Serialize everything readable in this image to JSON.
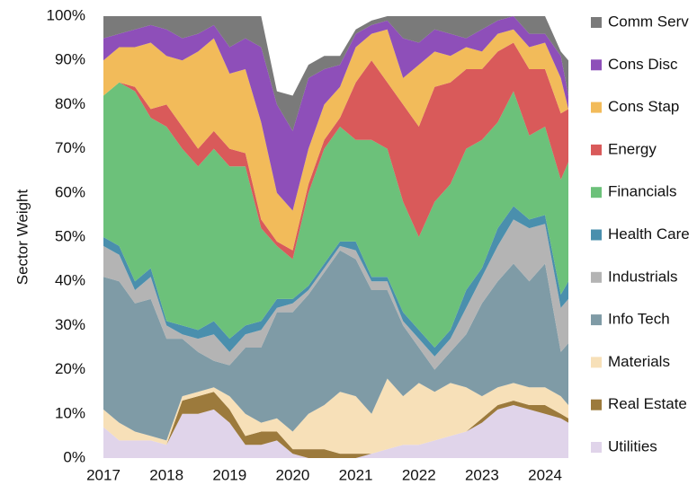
{
  "chart_data": {
    "type": "stacked_area",
    "y_label": "Sector Weight",
    "x": [
      2017,
      2017.25,
      2017.5,
      2017.75,
      2018,
      2018.25,
      2018.5,
      2018.75,
      2019,
      2019.25,
      2019.5,
      2019.75,
      2020,
      2020.25,
      2020.5,
      2020.75,
      2021,
      2021.25,
      2021.5,
      2021.75,
      2022,
      2022.25,
      2022.5,
      2022.75,
      2023,
      2023.25,
      2023.5,
      2023.75,
      2024,
      2024.25,
      2024.37
    ],
    "xlim": [
      2017,
      2024.37
    ],
    "xticks": [
      2017,
      2018,
      2019,
      2020,
      2021,
      2022,
      2023,
      2024
    ],
    "ylim": [
      0,
      100
    ],
    "yticks": [
      {
        "value": 0,
        "label": "0%"
      },
      {
        "value": 10,
        "label": "10%"
      },
      {
        "value": 20,
        "label": "20%"
      },
      {
        "value": 30,
        "label": "30%"
      },
      {
        "value": 40,
        "label": "40%"
      },
      {
        "value": 50,
        "label": "50%"
      },
      {
        "value": 60,
        "label": "60%"
      },
      {
        "value": 70,
        "label": "70%"
      },
      {
        "value": 80,
        "label": "80%"
      },
      {
        "value": 90,
        "label": "90%"
      },
      {
        "value": 100,
        "label": "100%"
      }
    ],
    "grid": false,
    "legend": "right",
    "series": [
      {
        "name": "Utilities",
        "color": "#e0d4ea",
        "values": [
          7,
          4,
          4,
          4,
          3,
          10,
          10,
          11,
          8,
          3,
          3,
          4,
          1,
          0,
          0,
          0,
          0,
          1,
          2,
          3,
          3,
          4,
          5,
          6,
          8,
          11,
          12,
          11,
          10,
          9,
          8
        ]
      },
      {
        "name": "Real Estate",
        "color": "#9c7a3c",
        "values": [
          0,
          0,
          0,
          0,
          0,
          3,
          4,
          4,
          3,
          2,
          3,
          2,
          1,
          2,
          2,
          1,
          1,
          0,
          0,
          0,
          0,
          0,
          0,
          0,
          1,
          1,
          1,
          1,
          2,
          1,
          1
        ]
      },
      {
        "name": "Materials",
        "color": "#f7e0b8",
        "values": [
          4,
          4,
          2,
          1,
          1,
          1,
          1,
          1,
          3,
          5,
          2,
          3,
          4,
          8,
          10,
          14,
          13,
          9,
          16,
          11,
          14,
          11,
          12,
          10,
          5,
          4,
          4,
          4,
          4,
          4,
          3
        ]
      },
      {
        "name": "Info Tech",
        "color": "#7f9ba6",
        "values": [
          30,
          32,
          29,
          31,
          23,
          13,
          9,
          6,
          7,
          15,
          17,
          24,
          27,
          27,
          30,
          32,
          31,
          28,
          20,
          16,
          8,
          5,
          7,
          12,
          21,
          24,
          27,
          24,
          28,
          10,
          14
        ]
      },
      {
        "name": "Industrials",
        "color": "#b4b4b4",
        "values": [
          7,
          6,
          3,
          5,
          3,
          1,
          3,
          6,
          3,
          3,
          4,
          1,
          2,
          1,
          1,
          1,
          2,
          2,
          2,
          1,
          2,
          3,
          3,
          6,
          6,
          8,
          10,
          12,
          9,
          10,
          10
        ]
      },
      {
        "name": "Health Care",
        "color": "#4a8fad",
        "values": [
          2,
          2,
          2,
          2,
          1,
          2,
          2,
          3,
          3,
          2,
          2,
          2,
          1,
          1,
          1,
          1,
          2,
          1,
          1,
          2,
          2,
          2,
          2,
          4,
          2,
          4,
          3,
          2,
          2,
          3,
          4
        ]
      },
      {
        "name": "Financials",
        "color": "#6cc17a",
        "values": [
          32,
          37,
          43,
          34,
          44,
          40,
          37,
          39,
          39,
          36,
          21,
          12,
          9,
          21,
          26,
          26,
          23,
          31,
          29,
          25,
          21,
          33,
          33,
          32,
          29,
          24,
          26,
          19,
          20,
          26,
          27
        ]
      },
      {
        "name": "Energy",
        "color": "#d95a5a",
        "values": [
          0,
          0,
          1,
          2,
          5,
          5,
          4,
          4,
          4,
          3,
          2,
          1,
          2,
          2,
          2,
          2,
          13,
          18,
          15,
          22,
          25,
          26,
          23,
          18,
          16,
          16,
          11,
          15,
          13,
          15,
          12
        ]
      },
      {
        "name": "Cons Stap",
        "color": "#f2bb5a",
        "values": [
          8,
          8,
          9,
          15,
          11,
          15,
          22,
          21,
          17,
          19,
          22,
          11,
          9,
          8,
          8,
          7,
          8,
          6,
          12,
          6,
          14,
          8,
          6,
          5,
          4,
          4,
          3,
          5,
          6,
          8,
          0
        ]
      },
      {
        "name": "Cons Disc",
        "color": "#8e4fb9",
        "values": [
          5,
          3,
          4,
          4,
          6,
          5,
          4,
          3,
          6,
          7,
          17,
          20,
          18,
          16,
          8,
          5,
          3,
          2,
          2,
          9,
          5,
          5,
          5,
          2,
          5,
          3,
          3,
          3,
          2,
          5,
          3
        ]
      },
      {
        "name": "Comm Serv",
        "color": "#7a7a7a",
        "values": [
          5,
          4,
          3,
          2,
          3,
          5,
          4,
          2,
          7,
          5,
          7,
          3,
          8,
          3,
          3,
          2,
          1,
          1,
          1,
          5,
          6,
          3,
          4,
          5,
          3,
          1,
          0,
          4,
          4,
          1,
          8
        ]
      }
    ]
  }
}
